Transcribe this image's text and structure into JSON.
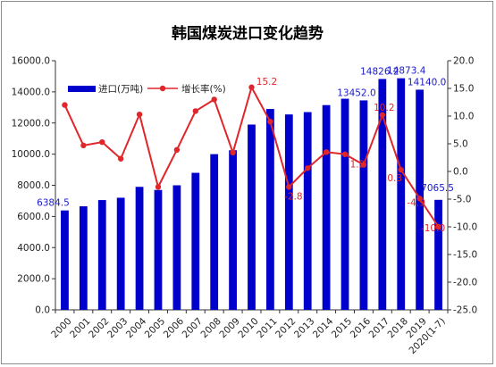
{
  "chart_data": {
    "type": "bar+line",
    "title": "韩国煤炭进口变化趋势",
    "categories": [
      "2000",
      "2001",
      "2002",
      "2003",
      "2004",
      "2005",
      "2006",
      "2007",
      "2008",
      "2009",
      "2010",
      "2011",
      "2012",
      "2013",
      "2014",
      "2015",
      "2016",
      "2017",
      "2018",
      "2019",
      "2020(1-7)"
    ],
    "series": [
      {
        "name": "进口(万吨)",
        "type": "bar",
        "axis": "left",
        "color": "#0000cc",
        "values": [
          6384.5,
          6650,
          7050,
          7200,
          7900,
          7700,
          8000,
          8800,
          10000,
          10250,
          11900,
          12900,
          12550,
          12700,
          13150,
          13560,
          13452.0,
          14826.2,
          14873.4,
          14140.0,
          7065.5
        ]
      },
      {
        "name": "增长率(%)",
        "type": "line",
        "axis": "right",
        "color": "#e0262a",
        "values": [
          12.0,
          4.7,
          5.3,
          2.3,
          10.3,
          -2.8,
          3.9,
          10.9,
          13.0,
          3.4,
          15.2,
          9.0,
          -2.8,
          0.6,
          3.5,
          3.1,
          1.2,
          10.2,
          0.3,
          -4.9,
          -10.0
        ]
      }
    ],
    "bar_labels": [
      {
        "index": 0,
        "text": "6384.5"
      },
      {
        "index": 16,
        "text": "13452.0"
      },
      {
        "index": 17,
        "text": "14826.2"
      },
      {
        "index": 18,
        "text": "14873.4"
      },
      {
        "index": 19,
        "text": "14140.0"
      },
      {
        "index": 20,
        "text": "7065.5"
      }
    ],
    "rate_labels": [
      {
        "index": 10,
        "text": "15.2"
      },
      {
        "index": 12,
        "text": "-2.8"
      },
      {
        "index": 16,
        "text": "1.2"
      },
      {
        "index": 17,
        "text": "10.2"
      },
      {
        "index": 18,
        "text": "0.3"
      },
      {
        "index": 19,
        "text": "-4.9"
      },
      {
        "index": 20,
        "text": "-10.0"
      }
    ],
    "left_axis": {
      "min": 0,
      "max": 16000,
      "step": 2000,
      "decimals": 1
    },
    "right_axis": {
      "min": -25,
      "max": 20,
      "step": 5,
      "decimals": 1
    },
    "legend_placement": "top-left",
    "grid": false
  }
}
